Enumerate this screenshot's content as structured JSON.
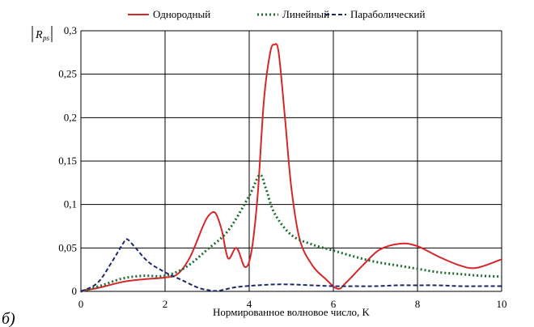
{
  "panel_label": "б)",
  "chart_data": {
    "type": "line",
    "title": "",
    "xlabel": "Нормированное волновое число, K",
    "ylabel": {
      "main": "R",
      "sub": "ps"
    },
    "xlim": [
      0,
      10
    ],
    "ylim": [
      0,
      0.3
    ],
    "x_ticks": [
      0,
      2,
      4,
      6,
      8,
      10
    ],
    "x_tick_labels": [
      "0",
      "2",
      "4",
      "6",
      "8",
      "10"
    ],
    "y_ticks": [
      0,
      0.05,
      0.1,
      0.15,
      0.2,
      0.25,
      0.3
    ],
    "y_tick_labels": [
      "0",
      "0,05",
      "0,1",
      "0,15",
      "0,2",
      "0,25",
      "0,3"
    ],
    "grid": true,
    "legend_position": "top",
    "series": [
      {
        "name": "Однородный",
        "color": "#d62728",
        "style": "solid",
        "points": [
          [
            0,
            0
          ],
          [
            0.5,
            0.005
          ],
          [
            1,
            0.011
          ],
          [
            1.5,
            0.014
          ],
          [
            2,
            0.016
          ],
          [
            2.3,
            0.02
          ],
          [
            2.6,
            0.04
          ],
          [
            2.9,
            0.075
          ],
          [
            3.05,
            0.088
          ],
          [
            3.2,
            0.09
          ],
          [
            3.35,
            0.07
          ],
          [
            3.5,
            0.038
          ],
          [
            3.7,
            0.05
          ],
          [
            3.9,
            0.028
          ],
          [
            4.05,
            0.045
          ],
          [
            4.2,
            0.11
          ],
          [
            4.35,
            0.22
          ],
          [
            4.5,
            0.275
          ],
          [
            4.6,
            0.284
          ],
          [
            4.7,
            0.275
          ],
          [
            4.85,
            0.2
          ],
          [
            5.0,
            0.12
          ],
          [
            5.2,
            0.06
          ],
          [
            5.5,
            0.03
          ],
          [
            5.8,
            0.015
          ],
          [
            6.1,
            0.003
          ],
          [
            6.3,
            0.01
          ],
          [
            6.7,
            0.03
          ],
          [
            7.1,
            0.048
          ],
          [
            7.6,
            0.055
          ],
          [
            8.0,
            0.052
          ],
          [
            8.5,
            0.04
          ],
          [
            9.0,
            0.03
          ],
          [
            9.4,
            0.027
          ],
          [
            10,
            0.037
          ]
        ]
      },
      {
        "name": "Линейный",
        "color": "#1e6b2e",
        "style": "dotted",
        "points": [
          [
            0,
            0
          ],
          [
            0.5,
            0.007
          ],
          [
            1,
            0.015
          ],
          [
            1.5,
            0.018
          ],
          [
            2,
            0.018
          ],
          [
            2.5,
            0.028
          ],
          [
            3,
            0.048
          ],
          [
            3.5,
            0.07
          ],
          [
            4.0,
            0.11
          ],
          [
            4.25,
            0.134
          ],
          [
            4.4,
            0.118
          ],
          [
            4.6,
            0.09
          ],
          [
            5.0,
            0.065
          ],
          [
            5.5,
            0.054
          ],
          [
            6.0,
            0.047
          ],
          [
            6.5,
            0.04
          ],
          [
            7.0,
            0.034
          ],
          [
            7.5,
            0.03
          ],
          [
            8.0,
            0.026
          ],
          [
            8.5,
            0.022
          ],
          [
            9.0,
            0.02
          ],
          [
            9.5,
            0.018
          ],
          [
            10,
            0.017
          ]
        ]
      },
      {
        "name": "Параболический",
        "color": "#1b2a6b",
        "style": "dashed",
        "points": [
          [
            0,
            0
          ],
          [
            0.4,
            0.01
          ],
          [
            0.75,
            0.035
          ],
          [
            1.0,
            0.055
          ],
          [
            1.1,
            0.06
          ],
          [
            1.3,
            0.05
          ],
          [
            1.6,
            0.034
          ],
          [
            2.0,
            0.022
          ],
          [
            2.4,
            0.013
          ],
          [
            2.8,
            0.004
          ],
          [
            3.1,
            0.001
          ],
          [
            3.3,
            0.001
          ],
          [
            3.7,
            0.005
          ],
          [
            4.2,
            0.007
          ],
          [
            4.6,
            0.008
          ],
          [
            5.0,
            0.008
          ],
          [
            5.5,
            0.007
          ],
          [
            6.0,
            0.006
          ],
          [
            6.5,
            0.006
          ],
          [
            7.0,
            0.006
          ],
          [
            7.5,
            0.007
          ],
          [
            8.0,
            0.007
          ],
          [
            8.5,
            0.007
          ],
          [
            9.0,
            0.006
          ],
          [
            9.5,
            0.006
          ],
          [
            10,
            0.006
          ]
        ]
      }
    ]
  }
}
